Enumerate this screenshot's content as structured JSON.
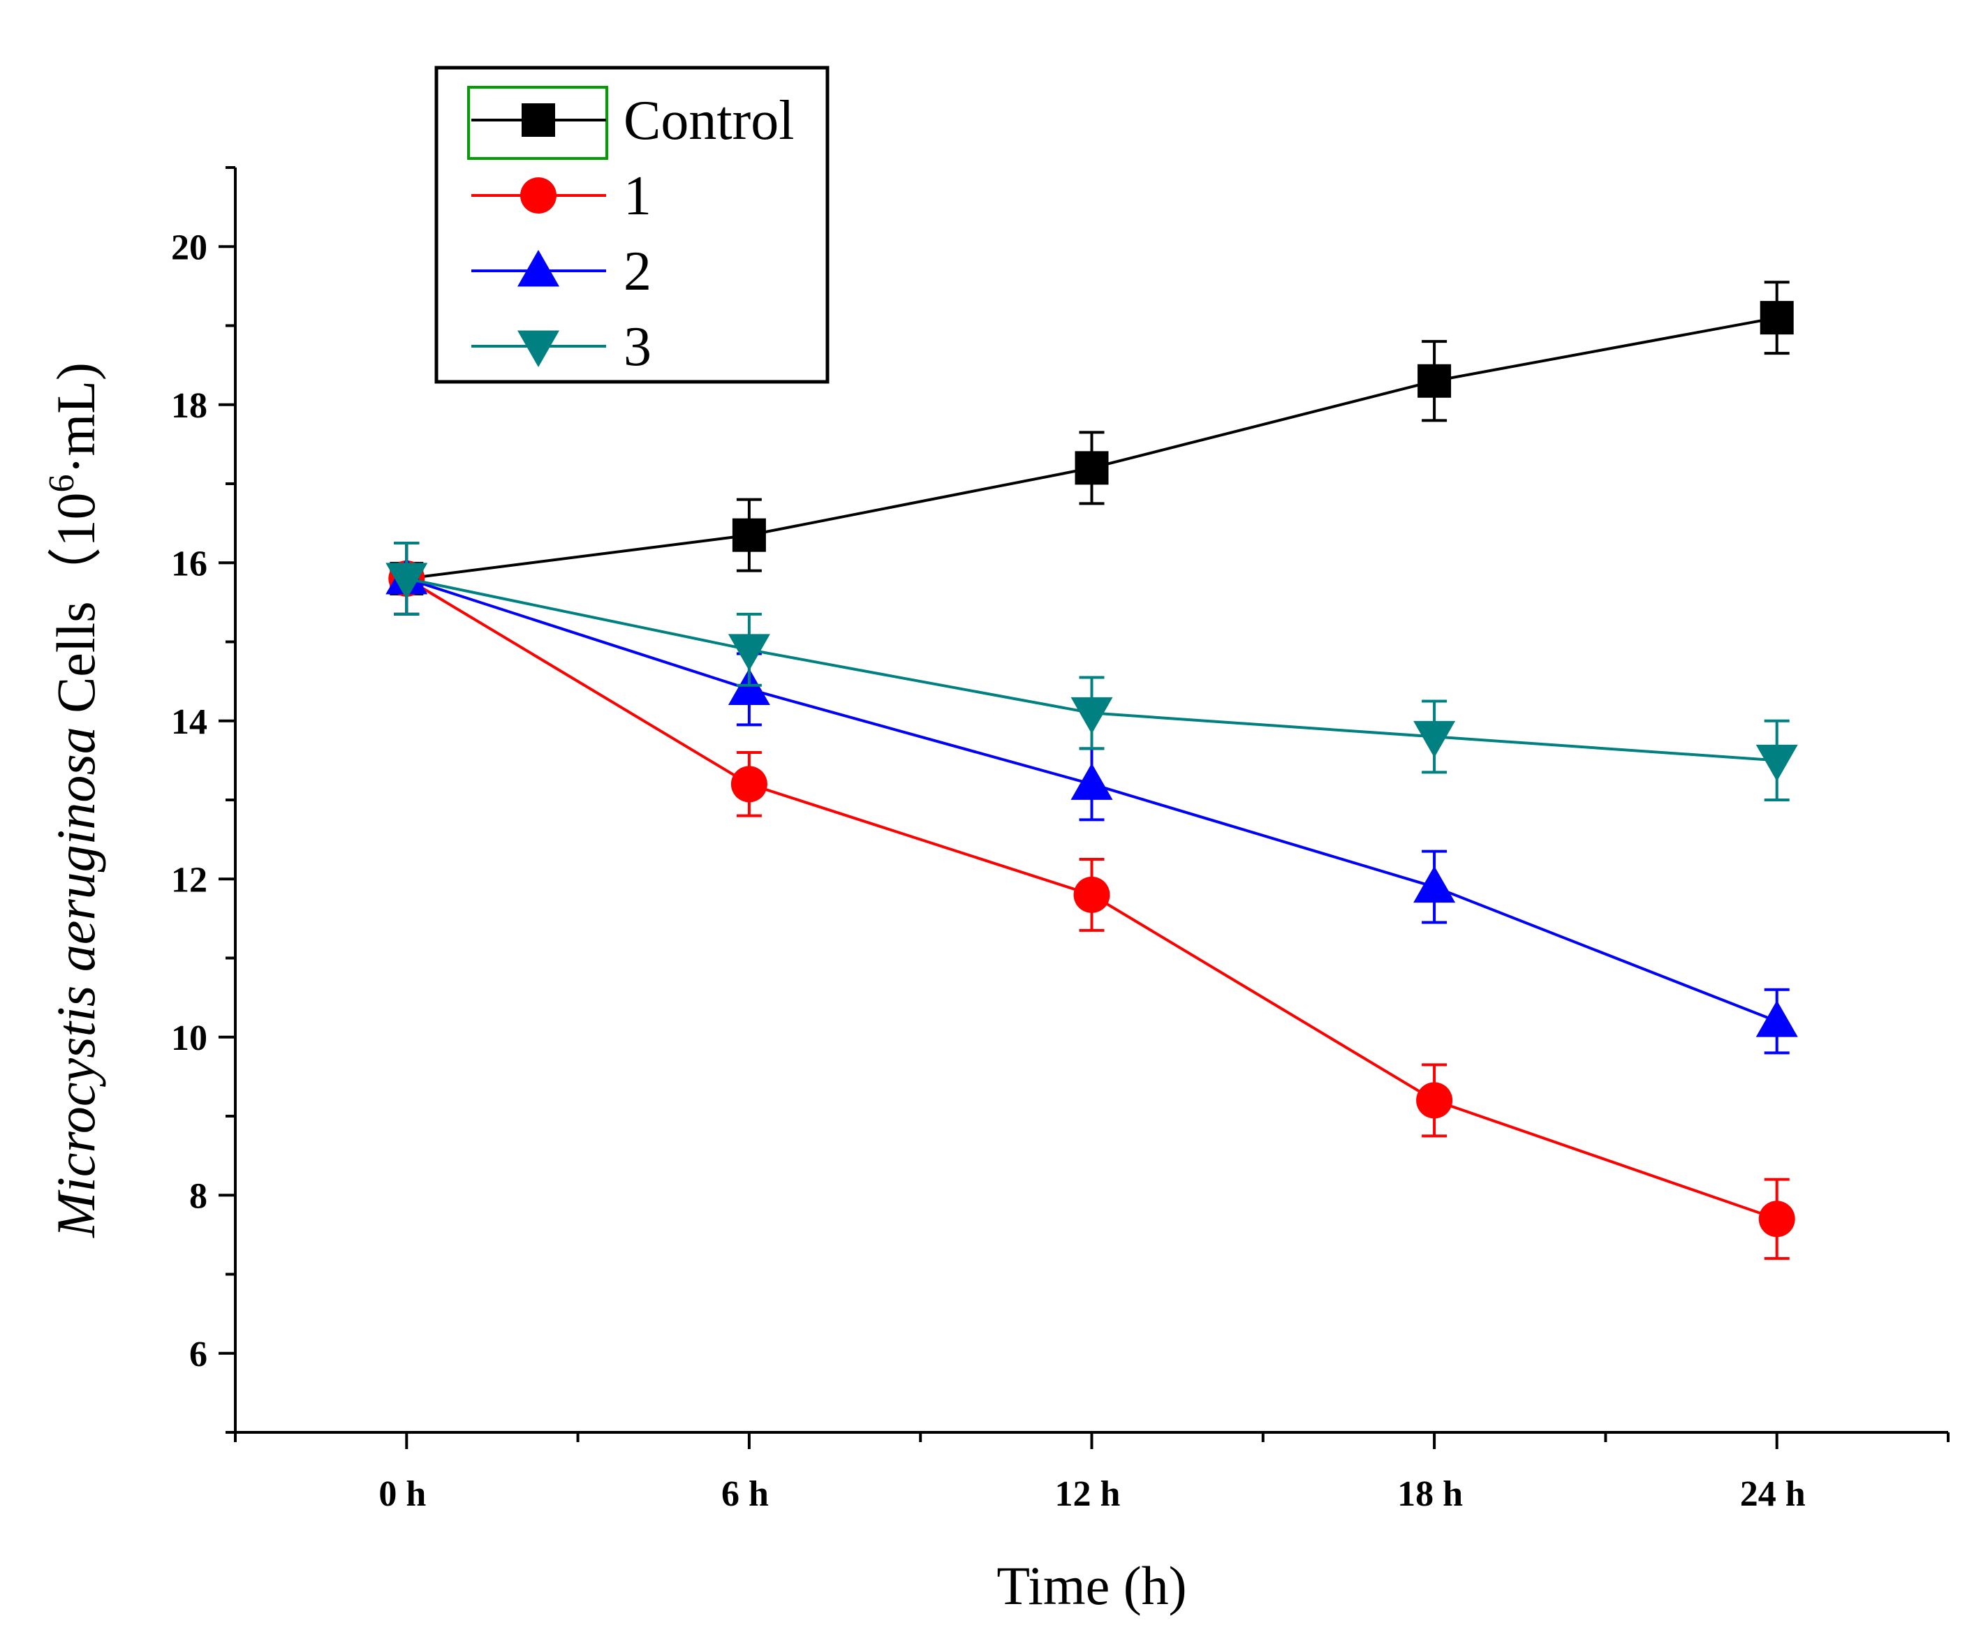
{
  "chart_data": {
    "type": "line",
    "title": "",
    "xlabel": "Time (h)",
    "ylabel": {
      "italic": "Microcystis aeruginosa",
      "rest": " Cells（10",
      "superscript": "6",
      "end": "·mL)"
    },
    "categories": [
      "0 h",
      "6 h",
      "12 h",
      "18 h",
      "24 h"
    ],
    "x": [
      0,
      6,
      12,
      18,
      24
    ],
    "xlim": [
      -3,
      27
    ],
    "ylim": [
      5,
      21
    ],
    "yticks": [
      6,
      8,
      10,
      12,
      14,
      16,
      18,
      20
    ],
    "ytick_labels": [
      "6",
      "8",
      "10",
      "12",
      "14",
      "16",
      "18",
      "20"
    ],
    "grid": false,
    "legend_position": "top-left",
    "series": [
      {
        "name": "Control",
        "color": "#000000",
        "marker": "square",
        "values": [
          15.8,
          16.35,
          17.2,
          18.3,
          19.1
        ],
        "errors": [
          0.45,
          0.45,
          0.45,
          0.5,
          0.45
        ]
      },
      {
        "name": "1",
        "color": "#ff0000",
        "marker": "circle",
        "values": [
          15.8,
          13.2,
          11.8,
          9.2,
          7.7
        ],
        "errors": [
          0.45,
          0.4,
          0.45,
          0.45,
          0.5
        ]
      },
      {
        "name": "2",
        "color": "#0000ff",
        "marker": "triangle-up",
        "values": [
          15.8,
          14.4,
          13.2,
          11.9,
          10.2
        ],
        "errors": [
          0.45,
          0.45,
          0.45,
          0.45,
          0.4
        ]
      },
      {
        "name": "3",
        "color": "#008080",
        "marker": "triangle-down",
        "values": [
          15.8,
          14.9,
          14.1,
          13.8,
          13.5
        ],
        "errors": [
          0.45,
          0.45,
          0.45,
          0.45,
          0.5
        ]
      }
    ]
  }
}
